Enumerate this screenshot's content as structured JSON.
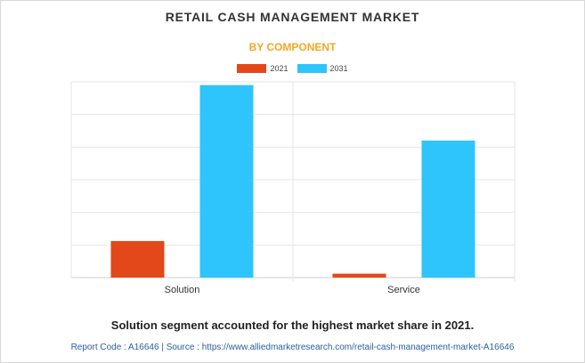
{
  "chart_data": {
    "type": "bar",
    "title": "RETAIL CASH MANAGEMENT MARKET",
    "subtitle": "BY COMPONENT",
    "categories": [
      "Solution",
      "Service"
    ],
    "series": [
      {
        "name": "2021",
        "color": "#e2481a",
        "values": [
          1.12,
          0.12
        ]
      },
      {
        "name": "2031",
        "color": "#2ec4fc",
        "values": [
          5.9,
          4.2
        ]
      }
    ],
    "ylim": [
      0,
      6
    ],
    "y_gridlines": 6,
    "y_tick_labels_shown": false,
    "grid": true,
    "legend_position": "top-center"
  },
  "caption": "Solution segment accounted for the highest market share in 2021.",
  "footer": "Report Code : A16646  |  Source : https://www.alliedmarketresearch.com/retail-cash-management-market-A16646",
  "colors": {
    "title": "#333333",
    "subtitle": "#f5a623",
    "footer": "#2a5f9e"
  }
}
